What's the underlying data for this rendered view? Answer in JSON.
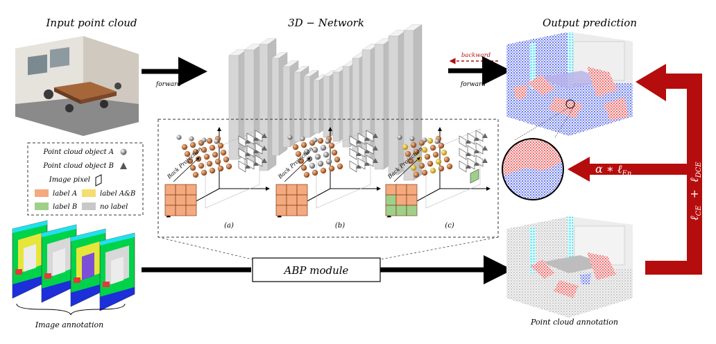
{
  "titles": {
    "input": "Input point cloud",
    "network": "3D − Network",
    "output": "Output prediction",
    "image_annotation": "Image annotation",
    "point_annotation": "Point cloud annotation"
  },
  "arrows": {
    "forward_left": "forward",
    "forward_right": "forward",
    "backward": "backward"
  },
  "abp_module": "ABP module",
  "legend": {
    "object_a": "Point cloud object A",
    "object_b": "Point cloud object B",
    "image_pixel": "Image pixel",
    "label_a": "label A",
    "label_ab": "label A&B",
    "label_b": "label B",
    "no_label": "no label"
  },
  "panels": {
    "a": "(a)",
    "b": "(b)",
    "c": "(c)",
    "back_projection": "Back Projection"
  },
  "losses": {
    "entropy": "α ∗ ℓ",
    "entropy_sub": "En",
    "ce": "ℓ",
    "ce_sub": "CE",
    "plus": "+",
    "dce": "ℓ",
    "dce_sub": "DCE"
  },
  "colors": {
    "label_a": "#f4a97e",
    "label_ab": "#f7dc6f",
    "label_b": "#9fd08a",
    "no_label": "#c8c8c8",
    "loss_red": "#b50d0d",
    "backward_red": "#b50d0d"
  }
}
